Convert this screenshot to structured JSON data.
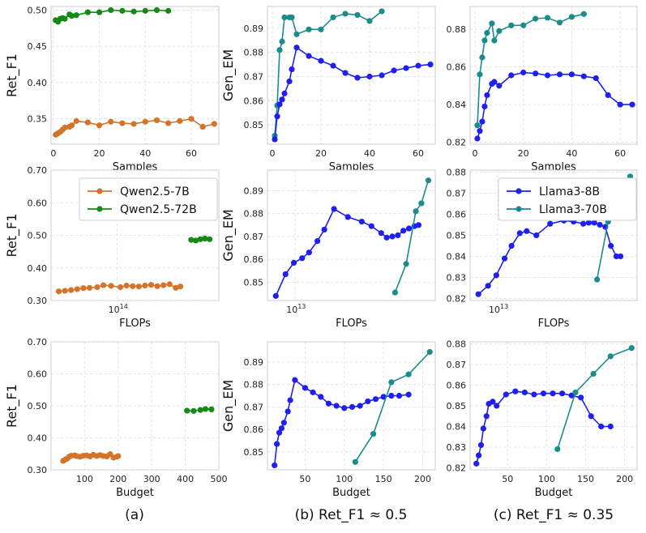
{
  "colors": {
    "qwen7": "#d4732a",
    "qwen72": "#138a13",
    "llama8": "#1f1ff0",
    "llama70": "#1a8c8c",
    "grid": "#dcdcdc",
    "frame": "#cccccc"
  },
  "legends": {
    "qwen": [
      {
        "series": "qwen7",
        "label": "Qwen2.5-7B"
      },
      {
        "series": "qwen72",
        "label": "Qwen2.5-72B"
      }
    ],
    "llama": [
      {
        "series": "llama8",
        "label": "Llama3-8B"
      },
      {
        "series": "llama70",
        "label": "Llama3-70B"
      }
    ]
  },
  "captions": [
    "(a)",
    "(b) Ret_F1 ≈ 0.5",
    "(c) Ret_F1 ≈ 0.35"
  ],
  "chart_data": [
    {
      "id": "a1",
      "type": "line",
      "xlabel": "Samples",
      "ylabel": "Ret_F1",
      "xlim": [
        -1,
        72
      ],
      "ylim": [
        0.315,
        0.505
      ],
      "xscale": "linear",
      "xticks": [
        0,
        20,
        40,
        60
      ],
      "xtick_labels": [
        "0",
        "20",
        "40",
        "60"
      ],
      "yticks": [
        0.35,
        0.4,
        0.45,
        0.5
      ],
      "ytick_labels": [
        "0.35",
        "0.40",
        "0.45",
        "0.50"
      ],
      "series": [
        {
          "key": "qwen7",
          "x": [
            1,
            2,
            3,
            4,
            5,
            7,
            8,
            10,
            15,
            20,
            25,
            30,
            35,
            40,
            45,
            50,
            55,
            60,
            65,
            70
          ],
          "y": [
            0.328,
            0.33,
            0.332,
            0.335,
            0.338,
            0.339,
            0.341,
            0.347,
            0.345,
            0.341,
            0.346,
            0.344,
            0.343,
            0.346,
            0.348,
            0.344,
            0.347,
            0.35,
            0.339,
            0.343
          ]
        },
        {
          "key": "qwen72",
          "x": [
            1,
            2,
            3,
            4,
            5,
            7,
            8,
            10,
            15,
            20,
            25,
            30,
            35,
            40,
            45,
            50
          ],
          "y": [
            0.486,
            0.484,
            0.488,
            0.489,
            0.488,
            0.494,
            0.492,
            0.493,
            0.497,
            0.497,
            0.5,
            0.499,
            0.498,
            0.499,
            0.5,
            0.499
          ]
        }
      ]
    },
    {
      "id": "b1",
      "type": "line",
      "xlabel": "Samples",
      "ylabel": "Gen_EM",
      "xlim": [
        -2,
        67
      ],
      "ylim": [
        0.842,
        0.899
      ],
      "xscale": "linear",
      "xticks": [
        0,
        20,
        40,
        60
      ],
      "xtick_labels": [
        "0",
        "20",
        "40",
        "60"
      ],
      "yticks": [
        0.85,
        0.86,
        0.87,
        0.88,
        0.89
      ],
      "ytick_labels": [
        "0.85",
        "0.86",
        "0.87",
        "0.88",
        "0.89"
      ],
      "series": [
        {
          "key": "llama70",
          "x": [
            1,
            2,
            3,
            4,
            5,
            7,
            8,
            10,
            15,
            20,
            25,
            30,
            35,
            40,
            45
          ],
          "y": [
            0.8455,
            0.858,
            0.881,
            0.8845,
            0.8945,
            0.8945,
            0.8945,
            0.8875,
            0.8895,
            0.8895,
            0.8945,
            0.896,
            0.8955,
            0.893,
            0.897
          ]
        },
        {
          "key": "llama8",
          "x": [
            1,
            2,
            3,
            4,
            5,
            7,
            8,
            10,
            15,
            20,
            25,
            30,
            35,
            40,
            45,
            50,
            55,
            60,
            65
          ],
          "y": [
            0.844,
            0.8535,
            0.8585,
            0.8605,
            0.863,
            0.868,
            0.873,
            0.882,
            0.8785,
            0.8765,
            0.8745,
            0.8715,
            0.8695,
            0.87,
            0.8705,
            0.8725,
            0.8735,
            0.8745,
            0.875
          ]
        }
      ]
    },
    {
      "id": "c1",
      "type": "line",
      "xlabel": "Samples",
      "ylabel": "",
      "xlim": [
        -2,
        67
      ],
      "ylim": [
        0.819,
        0.892
      ],
      "xscale": "linear",
      "xticks": [
        0,
        20,
        40,
        60
      ],
      "xtick_labels": [
        "0",
        "20",
        "40",
        "60"
      ],
      "yticks": [
        0.82,
        0.84,
        0.86,
        0.88
      ],
      "ytick_labels": [
        "0.82",
        "0.84",
        "0.86",
        "0.88"
      ],
      "series": [
        {
          "key": "llama70",
          "x": [
            1,
            2,
            3,
            4,
            5,
            7,
            8,
            10,
            15,
            20,
            25,
            30,
            35,
            40,
            45
          ],
          "y": [
            0.829,
            0.856,
            0.865,
            0.874,
            0.878,
            0.883,
            0.874,
            0.879,
            0.882,
            0.882,
            0.8855,
            0.886,
            0.8835,
            0.8865,
            0.888
          ]
        },
        {
          "key": "llama8",
          "x": [
            1,
            2,
            3,
            4,
            5,
            7,
            8,
            10,
            15,
            20,
            25,
            30,
            35,
            40,
            45,
            50,
            55,
            60,
            65
          ],
          "y": [
            0.822,
            0.826,
            0.831,
            0.839,
            0.845,
            0.851,
            0.852,
            0.85,
            0.8555,
            0.857,
            0.8565,
            0.8555,
            0.856,
            0.856,
            0.855,
            0.854,
            0.845,
            0.84,
            0.84
          ]
        }
      ]
    },
    {
      "id": "a2",
      "type": "line",
      "xlabel": "FLOPs",
      "ylabel": "Ret_F1",
      "xlim": [
        13.57,
        14.66
      ],
      "ylim": [
        0.3,
        0.7
      ],
      "xscale": "log",
      "xticks": [
        14.0
      ],
      "xtick_labels": [
        "10"
      ],
      "xtick_exp": "14",
      "yticks": [
        0.3,
        0.4,
        0.5,
        0.6,
        0.7
      ],
      "ytick_labels": [
        "0.30",
        "0.40",
        "0.50",
        "0.60",
        "0.70"
      ],
      "legend": "qwen",
      "series": [
        {
          "key": "qwen7",
          "x": [
            13.62,
            13.66,
            13.7,
            13.74,
            13.78,
            13.82,
            13.87,
            13.91,
            13.96,
            14.02,
            14.06,
            14.1,
            14.14,
            14.18,
            14.22,
            14.26,
            14.3,
            14.34,
            14.38,
            14.41
          ],
          "y": [
            0.328,
            0.33,
            0.332,
            0.335,
            0.338,
            0.339,
            0.341,
            0.347,
            0.345,
            0.341,
            0.346,
            0.344,
            0.343,
            0.346,
            0.348,
            0.344,
            0.347,
            0.35,
            0.339,
            0.343
          ]
        },
        {
          "key": "qwen72",
          "x": [
            14.48,
            14.51,
            14.54,
            14.57,
            14.6
          ],
          "y": [
            0.486,
            0.484,
            0.488,
            0.49,
            0.488
          ]
        }
      ]
    },
    {
      "id": "b2",
      "type": "line",
      "xlabel": "FLOPs",
      "ylabel": "Gen_EM",
      "xlim": [
        12.8,
        14.01
      ],
      "ylim": [
        0.842,
        0.899
      ],
      "xscale": "log",
      "xticks": [
        13.0
      ],
      "xtick_labels": [
        "10"
      ],
      "xtick_exp": "13",
      "yticks": [
        0.85,
        0.86,
        0.87,
        0.88,
        0.89
      ],
      "ytick_labels": [
        "0.85",
        "0.86",
        "0.87",
        "0.88",
        "0.89"
      ],
      "series": [
        {
          "key": "llama8",
          "x": [
            12.86,
            12.93,
            12.99,
            13.05,
            13.1,
            13.16,
            13.21,
            13.28,
            13.38,
            13.48,
            13.55,
            13.62,
            13.66,
            13.7,
            13.74,
            13.78,
            13.82,
            13.86,
            13.89
          ],
          "y": [
            0.844,
            0.8535,
            0.8585,
            0.8605,
            0.863,
            0.868,
            0.873,
            0.882,
            0.8785,
            0.8765,
            0.8745,
            0.8715,
            0.8695,
            0.87,
            0.8705,
            0.8725,
            0.8735,
            0.8745,
            0.875
          ]
        },
        {
          "key": "llama70",
          "x": [
            13.72,
            13.8,
            13.87,
            13.91,
            13.96
          ],
          "y": [
            0.8455,
            0.858,
            0.881,
            0.8845,
            0.8945
          ]
        }
      ]
    },
    {
      "id": "c2",
      "type": "line",
      "xlabel": "FLOPs",
      "ylabel": "",
      "xlim": [
        12.8,
        14.01
      ],
      "ylim": [
        0.819,
        0.881
      ],
      "xscale": "log",
      "xticks": [
        13.0
      ],
      "xtick_labels": [
        "10"
      ],
      "xtick_exp": "13",
      "yticks": [
        0.82,
        0.83,
        0.84,
        0.85,
        0.86,
        0.87,
        0.88
      ],
      "ytick_labels": [
        "0.82",
        "0.83",
        "0.84",
        "0.85",
        "0.86",
        "0.87",
        "0.88"
      ],
      "legend": "llama",
      "series": [
        {
          "key": "llama8",
          "x": [
            12.86,
            12.93,
            12.99,
            13.05,
            13.1,
            13.16,
            13.21,
            13.28,
            13.38,
            13.48,
            13.55,
            13.62,
            13.66,
            13.7,
            13.74,
            13.78,
            13.82,
            13.86,
            13.89
          ],
          "y": [
            0.822,
            0.826,
            0.831,
            0.839,
            0.845,
            0.851,
            0.852,
            0.85,
            0.8555,
            0.857,
            0.8565,
            0.8555,
            0.856,
            0.856,
            0.855,
            0.854,
            0.845,
            0.84,
            0.84
          ]
        },
        {
          "key": "llama70",
          "x": [
            13.72,
            13.8,
            13.87,
            13.91,
            13.96
          ],
          "y": [
            0.829,
            0.8565,
            0.8655,
            0.874,
            0.878
          ]
        }
      ]
    },
    {
      "id": "a3",
      "type": "line",
      "xlabel": "Budget",
      "ylabel": "Ret_F1",
      "xlim": [
        0,
        500
      ],
      "ylim": [
        0.3,
        0.7
      ],
      "xscale": "linear",
      "xticks": [
        100,
        200,
        300,
        400,
        500
      ],
      "xtick_labels": [
        "100",
        "200",
        "300",
        "400",
        "500"
      ],
      "yticks": [
        0.3,
        0.4,
        0.5,
        0.6,
        0.7
      ],
      "ytick_labels": [
        "0.30",
        "0.40",
        "0.50",
        "0.60",
        "0.70"
      ],
      "series": [
        {
          "key": "qwen7",
          "x": [
            36,
            42,
            48,
            54,
            60,
            70,
            76,
            86,
            96,
            106,
            116,
            126,
            136,
            146,
            156,
            166,
            176,
            186,
            196,
            200
          ],
          "y": [
            0.328,
            0.332,
            0.335,
            0.341,
            0.344,
            0.345,
            0.343,
            0.341,
            0.344,
            0.345,
            0.342,
            0.347,
            0.343,
            0.346,
            0.343,
            0.342,
            0.349,
            0.338,
            0.341,
            0.343
          ]
        },
        {
          "key": "qwen72",
          "x": [
            405,
            425,
            445,
            460,
            478
          ],
          "y": [
            0.485,
            0.484,
            0.487,
            0.49,
            0.489
          ]
        }
      ]
    },
    {
      "id": "b3",
      "type": "line",
      "xlabel": "Budget",
      "ylabel": "Gen_EM",
      "xlim": [
        2,
        216
      ],
      "ylim": [
        0.842,
        0.899
      ],
      "xscale": "linear",
      "xticks": [
        50,
        100,
        150,
        200
      ],
      "xtick_labels": [
        "50",
        "100",
        "150",
        "200"
      ],
      "yticks": [
        0.85,
        0.86,
        0.87,
        0.88,
        0.89
      ],
      "ytick_labels": [
        "0.85",
        "0.86",
        "0.87",
        "0.88",
        "0.89"
      ],
      "series": [
        {
          "key": "llama8",
          "x": [
            11,
            14,
            17,
            20,
            23,
            28,
            31,
            37,
            50,
            60,
            70,
            80,
            90,
            100,
            110,
            120,
            130,
            140,
            150,
            160,
            170,
            182
          ],
          "y": [
            0.844,
            0.8535,
            0.8585,
            0.8605,
            0.863,
            0.868,
            0.873,
            0.882,
            0.8785,
            0.8765,
            0.8745,
            0.8715,
            0.8705,
            0.8695,
            0.87,
            0.8705,
            0.8725,
            0.8735,
            0.8745,
            0.875,
            0.875,
            0.8755
          ]
        },
        {
          "key": "llama70",
          "x": [
            114,
            137,
            160,
            182,
            209
          ],
          "y": [
            0.8455,
            0.858,
            0.881,
            0.8845,
            0.8945
          ]
        }
      ]
    },
    {
      "id": "c3",
      "type": "line",
      "xlabel": "Budget",
      "ylabel": "",
      "xlim": [
        2,
        216
      ],
      "ylim": [
        0.819,
        0.881
      ],
      "xscale": "linear",
      "xticks": [
        50,
        100,
        150,
        200
      ],
      "xtick_labels": [
        "50",
        "100",
        "150",
        "200"
      ],
      "yticks": [
        0.82,
        0.83,
        0.84,
        0.85,
        0.86,
        0.87,
        0.88
      ],
      "ytick_labels": [
        "0.82",
        "0.83",
        "0.84",
        "0.85",
        "0.86",
        "0.87",
        "0.88"
      ],
      "series": [
        {
          "key": "llama8",
          "x": [
            10,
            13,
            16,
            19,
            23,
            26,
            31,
            36,
            48,
            60,
            72,
            84,
            96,
            108,
            120,
            132,
            144,
            157,
            170,
            182
          ],
          "y": [
            0.822,
            0.826,
            0.831,
            0.839,
            0.845,
            0.851,
            0.852,
            0.85,
            0.8555,
            0.857,
            0.8565,
            0.8555,
            0.856,
            0.856,
            0.856,
            0.855,
            0.854,
            0.845,
            0.84,
            0.84
          ]
        },
        {
          "key": "llama70",
          "x": [
            114,
            137,
            160,
            182,
            209
          ],
          "y": [
            0.829,
            0.8565,
            0.8655,
            0.874,
            0.878
          ]
        }
      ]
    }
  ]
}
